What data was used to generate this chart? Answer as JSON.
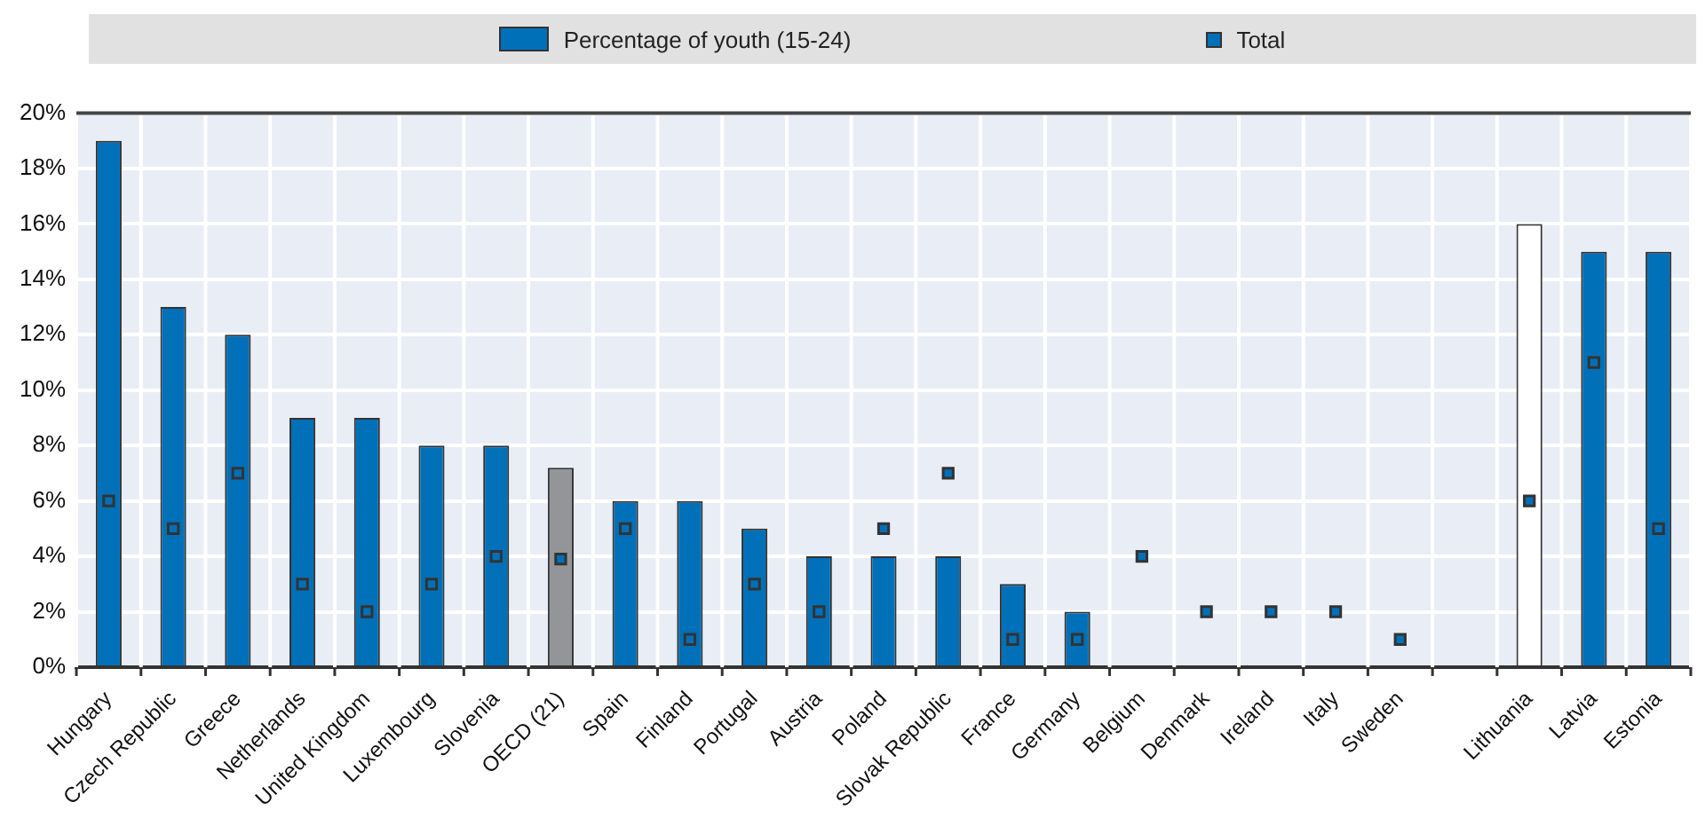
{
  "chart_data": {
    "type": "bar",
    "categories": [
      "Hungary",
      "Czech Republic",
      "Greece",
      "Netherlands",
      "United Kingdom",
      "Luxembourg",
      "Slovenia",
      "OECD (21)",
      "Spain",
      "Finland",
      "Portugal",
      "Austria",
      "Poland",
      "Slovak Republic",
      "France",
      "Germany",
      "Belgium",
      "Denmark",
      "Ireland",
      "Italy",
      "Sweden",
      null,
      "Lithuania",
      "Latvia",
      "Estonia"
    ],
    "series": [
      {
        "name": "Percentage of youth (15-24)",
        "type": "bar",
        "color": "#0070b8",
        "colors": [
          "#0070b8",
          "#0070b8",
          "#0070b8",
          "#0070b8",
          "#0070b8",
          "#0070b8",
          "#0070b8",
          "#939598",
          "#0070b8",
          "#0070b8",
          "#0070b8",
          "#0070b8",
          "#0070b8",
          "#0070b8",
          "#0070b8",
          "#0070b8",
          "#0070b8",
          "#0070b8",
          "#0070b8",
          "#0070b8",
          "#0070b8",
          "#0070b8",
          "#ffffff",
          "#0070b8",
          "#0070b8"
        ],
        "values": [
          19,
          13,
          12,
          9,
          9,
          8,
          8,
          7.2,
          6,
          6,
          5,
          4,
          4,
          4,
          3,
          2,
          0,
          0,
          0,
          0,
          0,
          null,
          16,
          15,
          15
        ]
      },
      {
        "name": "Total",
        "type": "scatter",
        "color": "#0070b8",
        "values": [
          6,
          5,
          7,
          3,
          2,
          3,
          4,
          3.9,
          5,
          1,
          3,
          2,
          5,
          7,
          1,
          1,
          4,
          2,
          2,
          2,
          1,
          null,
          6,
          11,
          5
        ]
      }
    ],
    "ylim": [
      0,
      20
    ],
    "yticks": [
      {
        "value": 0,
        "label": "0%"
      },
      {
        "value": 2,
        "label": "2%"
      },
      {
        "value": 4,
        "label": "4%"
      },
      {
        "value": 6,
        "label": "6%"
      },
      {
        "value": 8,
        "label": "8%"
      },
      {
        "value": 10,
        "label": "10%"
      },
      {
        "value": 12,
        "label": "12%"
      },
      {
        "value": 14,
        "label": "14%"
      },
      {
        "value": 16,
        "label": "16%"
      },
      {
        "value": 18,
        "label": "18%"
      },
      {
        "value": 20,
        "label": "20%"
      }
    ],
    "grid": true,
    "legend": "top"
  }
}
